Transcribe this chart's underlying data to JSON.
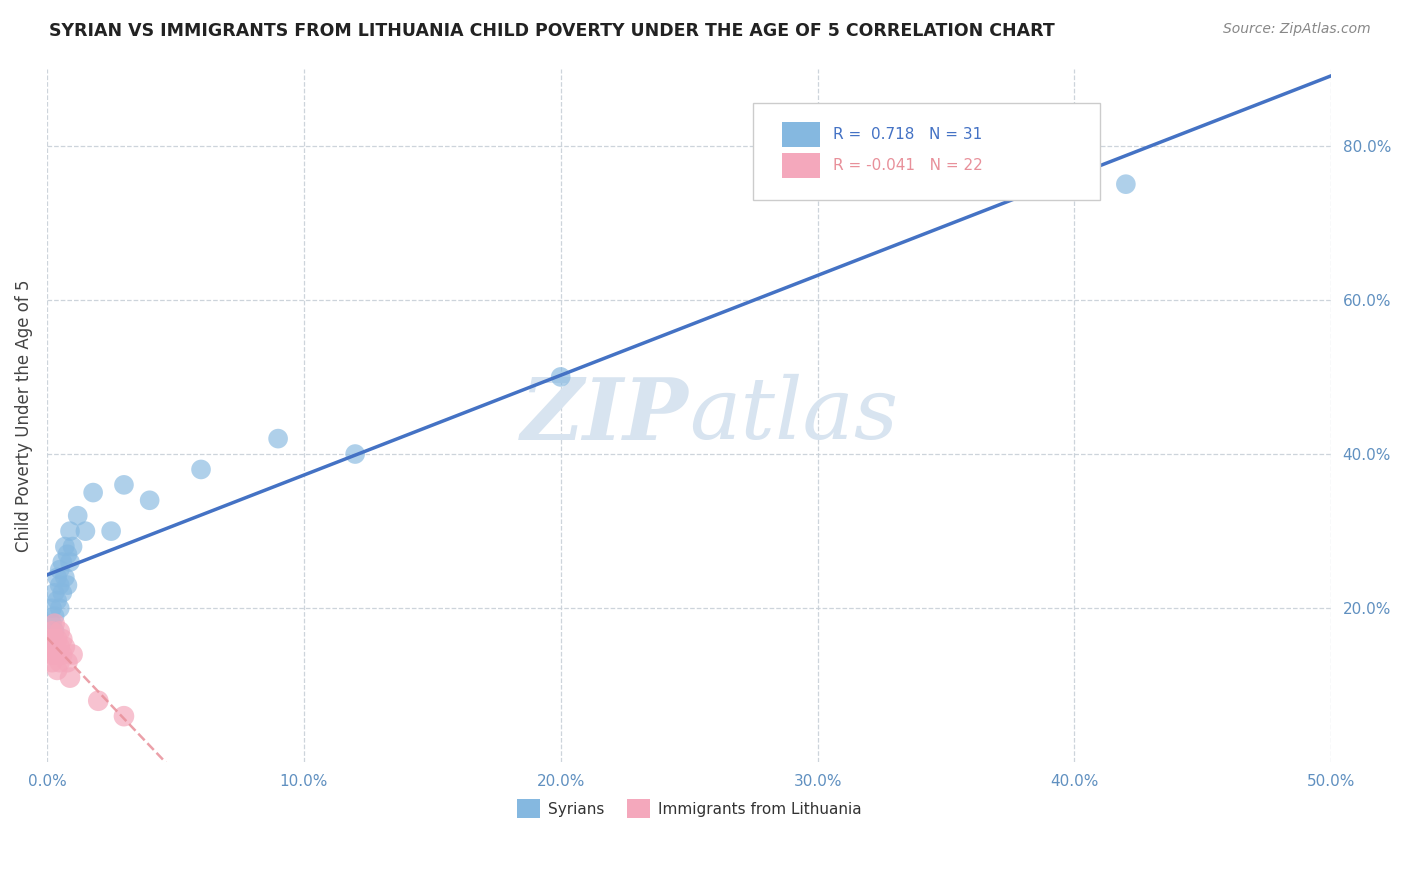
{
  "title": "SYRIAN VS IMMIGRANTS FROM LITHUANIA CHILD POVERTY UNDER THE AGE OF 5 CORRELATION CHART",
  "source": "Source: ZipAtlas.com",
  "ylabel": "Child Poverty Under the Age of 5",
  "xlim": [
    0,
    0.5
  ],
  "ylim": [
    0,
    0.9
  ],
  "xticks": [
    0.0,
    0.1,
    0.2,
    0.3,
    0.4,
    0.5
  ],
  "xtick_labels": [
    "0.0%",
    "10.0%",
    "20.0%",
    "30.0%",
    "40.0%",
    "50.0%"
  ],
  "yticks": [
    0.2,
    0.4,
    0.6,
    0.8
  ],
  "ytick_labels": [
    "20.0%",
    "40.0%",
    "60.0%",
    "80.0%"
  ],
  "blue_color": "#85b8e0",
  "pink_color": "#f4a8bc",
  "blue_line_color": "#4472c4",
  "pink_line_color": "#e8909a",
  "background_color": "#ffffff",
  "grid_color": "#c8d0d8",
  "watermark_color": "#d8e4f0",
  "tick_color": "#6090c0",
  "syrians_x": [
    0.001,
    0.002,
    0.002,
    0.003,
    0.003,
    0.003,
    0.004,
    0.004,
    0.005,
    0.005,
    0.005,
    0.006,
    0.006,
    0.007,
    0.007,
    0.008,
    0.008,
    0.009,
    0.009,
    0.01,
    0.012,
    0.015,
    0.018,
    0.025,
    0.03,
    0.04,
    0.06,
    0.09,
    0.12,
    0.2,
    0.42
  ],
  "syrians_y": [
    0.16,
    0.18,
    0.2,
    0.19,
    0.22,
    0.17,
    0.21,
    0.24,
    0.2,
    0.23,
    0.25,
    0.22,
    0.26,
    0.24,
    0.28,
    0.23,
    0.27,
    0.26,
    0.3,
    0.28,
    0.32,
    0.3,
    0.35,
    0.3,
    0.36,
    0.34,
    0.38,
    0.42,
    0.4,
    0.5,
    0.75
  ],
  "lithuania_x": [
    0.001,
    0.001,
    0.002,
    0.002,
    0.002,
    0.003,
    0.003,
    0.003,
    0.004,
    0.004,
    0.004,
    0.005,
    0.005,
    0.005,
    0.006,
    0.006,
    0.007,
    0.008,
    0.009,
    0.01,
    0.02,
    0.03
  ],
  "lithuania_y": [
    0.14,
    0.16,
    0.13,
    0.15,
    0.17,
    0.14,
    0.16,
    0.18,
    0.14,
    0.16,
    0.12,
    0.15,
    0.17,
    0.13,
    0.14,
    0.16,
    0.15,
    0.13,
    0.11,
    0.14,
    0.08,
    0.06
  ]
}
